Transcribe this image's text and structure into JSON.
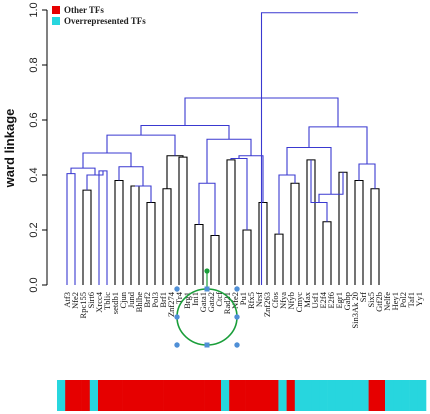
{
  "colors": {
    "other": "#e60000",
    "overrepresented": "#27d6de",
    "black_link": "#000000",
    "blue_link": "#3a39d0",
    "selection": "#1a9e3a",
    "handle": "#4f8fd6"
  },
  "chart_data": {
    "type": "dendrogram",
    "ylabel": "ward linkage",
    "ylim": [
      0,
      1.0
    ],
    "yticks": [
      "0.0",
      "0.2",
      "0.4",
      "0.6",
      "0.8",
      "1.0"
    ],
    "legend": [
      {
        "label": "Other TFs",
        "color": "#e60000"
      },
      {
        "label": "Overrepresented TFs",
        "color": "#27d6de"
      }
    ],
    "legend_position": "top-left",
    "leaves": [
      "Atf3",
      "Nfe2",
      "Rpc155",
      "Sirt6",
      "Xrcc4",
      "Tblic",
      "setdb1",
      "Cjun",
      "Jund",
      "Bhlhe",
      "Brf2",
      "Pol3",
      "Brf1",
      "Znf274",
      "Tr4",
      "Brg1",
      "Ini1",
      "Gata1",
      "Gata2",
      "Ctcf",
      "Rad21",
      "Nfe2",
      "Pu1",
      "Rfx5",
      "Nrsf",
      "Znf263",
      "Cfos",
      "Nfya",
      "Nfyb",
      "Cmyc",
      "Max",
      "Usf1",
      "E2f4",
      "E2f6",
      "Egr1",
      "Gabp",
      "Sin3Ak 20",
      "Srf",
      "Six5",
      "Gtf2b",
      "Nelfe",
      "Hey1",
      "Pol2",
      "Taf1",
      "Yy1"
    ],
    "leaf_classes": [
      "over",
      "other",
      "other",
      "other",
      "over",
      "other",
      "other",
      "other",
      "other",
      "other",
      "other",
      "other",
      "other",
      "other",
      "other",
      "other",
      "other",
      "other",
      "other",
      "other",
      "over",
      "other",
      "other",
      "other",
      "other",
      "other",
      "other",
      "over",
      "other",
      "over",
      "over",
      "over",
      "over",
      "over",
      "over",
      "over",
      "over",
      "over",
      "other",
      "other",
      "over",
      "over",
      "over",
      "over",
      "over"
    ],
    "merges": [
      [
        0,
        1,
        0.405,
        "b"
      ],
      [
        2,
        3,
        0.345,
        "k"
      ],
      [
        4,
        5,
        0.415,
        "b"
      ],
      [
        6,
        7,
        0.38,
        "k"
      ],
      [
        8,
        9,
        0.36,
        "k"
      ],
      [
        10,
        11,
        0.3,
        "k"
      ],
      [
        12,
        13,
        0.35,
        "k"
      ],
      [
        14,
        15,
        0.465,
        "k"
      ],
      [
        16,
        17,
        0.22,
        "k"
      ],
      [
        18,
        19,
        0.18,
        "k"
      ],
      [
        20,
        21,
        0.455,
        "k"
      ],
      [
        22,
        23,
        0.2,
        "k"
      ],
      [
        24,
        25,
        0.3,
        "k"
      ],
      [
        26,
        27,
        0.185,
        "k"
      ],
      [
        28,
        29,
        0.37,
        "k"
      ],
      [
        30,
        31,
        0.455,
        "k"
      ],
      [
        32,
        33,
        0.23,
        "k"
      ],
      [
        34,
        35,
        0.41,
        "k"
      ],
      [
        36,
        37,
        0.38,
        "k"
      ],
      [
        38,
        39,
        0.35,
        "k"
      ]
    ],
    "selected_leaves": [
      "Brg1",
      "Rad21"
    ]
  }
}
